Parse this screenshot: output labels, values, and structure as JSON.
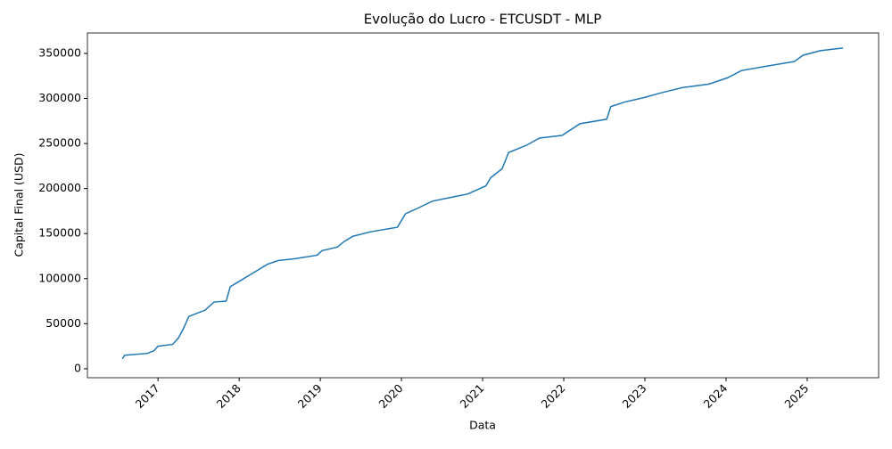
{
  "chart_data": {
    "type": "line",
    "title": "Evolução do Lucro - ETCUSDT - MLP",
    "x_label": "Data",
    "y_label": "Capital Final (USD)",
    "x": [
      2016.56,
      2016.59,
      2016.87,
      2016.95,
      2017.0,
      2017.18,
      2017.25,
      2017.31,
      2017.38,
      2017.58,
      2017.69,
      2017.84,
      2017.89,
      2018.0,
      2018.11,
      2018.24,
      2018.35,
      2018.48,
      2018.68,
      2018.96,
      2019.02,
      2019.21,
      2019.29,
      2019.4,
      2019.62,
      2019.95,
      2020.05,
      2020.22,
      2020.38,
      2020.6,
      2020.82,
      2021.04,
      2021.1,
      2021.24,
      2021.32,
      2021.54,
      2021.7,
      2021.98,
      2022.2,
      2022.53,
      2022.58,
      2022.75,
      2022.99,
      2023.19,
      2023.46,
      2023.79,
      2024.02,
      2024.19,
      2024.51,
      2024.84,
      2024.95,
      2025.16,
      2025.44
    ],
    "series": [
      {
        "name": "Capital",
        "color": "#1f77b4",
        "values": [
          11000,
          15000,
          17000,
          20000,
          25000,
          27000,
          34000,
          44000,
          58000,
          65000,
          74000,
          75000,
          91000,
          97000,
          103000,
          110000,
          116000,
          120000,
          122000,
          126000,
          131000,
          135000,
          141000,
          147000,
          152000,
          157000,
          172000,
          179000,
          186000,
          190000,
          194000,
          203000,
          212000,
          222000,
          240000,
          248000,
          256000,
          259000,
          272000,
          277000,
          291000,
          296000,
          301000,
          306000,
          312000,
          316000,
          323000,
          331000,
          336000,
          341000,
          348000,
          353000,
          356000
        ]
      }
    ],
    "xlim": [
      2016.13,
      2025.88
    ],
    "xticks": [
      2017,
      2018,
      2019,
      2020,
      2021,
      2022,
      2023,
      2024,
      2025
    ],
    "ylim": [
      -10000,
      372700
    ],
    "yticks": [
      0,
      50000,
      100000,
      150000,
      200000,
      250000,
      300000,
      350000
    ],
    "grid": false
  }
}
